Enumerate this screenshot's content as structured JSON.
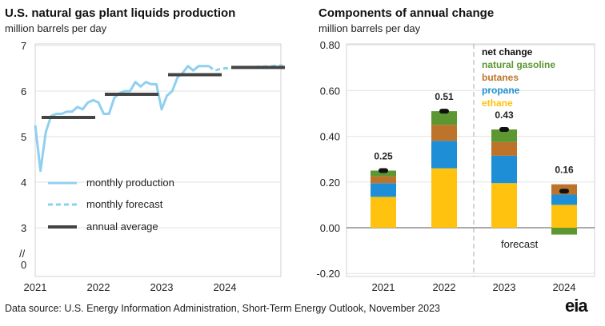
{
  "left_chart": {
    "title": "U.S. natural gas plant liquids production",
    "subtitle": "million barrels per day",
    "y_ticks": [
      "7",
      "6",
      "5",
      "4",
      "3",
      "0"
    ],
    "axis_break": "//",
    "x_ticks": [
      "2021",
      "2022",
      "2023",
      "2024"
    ],
    "legend": [
      "monthly production",
      "monthly forecast",
      "annual average"
    ]
  },
  "right_chart": {
    "title": "Components of annual change",
    "subtitle": "million barrels per day",
    "y_ticks": [
      "0.80",
      "0.60",
      "0.40",
      "0.20",
      "0.00",
      "-0.20"
    ],
    "x_ticks": [
      "2021",
      "2022",
      "2023",
      "2024"
    ],
    "legend": [
      "net change",
      "natural gasoline",
      "butanes",
      "propane",
      "ethane"
    ],
    "forecast_label": "forecast",
    "data_labels": [
      "0.25",
      "0.51",
      "0.43",
      "0.16"
    ]
  },
  "source": "Data source: U.S. Energy Information Administration, Short-Term Energy Outlook, November 2023",
  "logo": "eia",
  "colors": {
    "monthly": "#8fd0ef",
    "annual": "#444444",
    "ethane": "#ffc20e",
    "propane": "#1e8fd6",
    "butanes": "#bd732a",
    "natural_gasoline": "#5d9732",
    "net_change": "#111111"
  },
  "chart_data": [
    {
      "type": "line",
      "title": "U.S. natural gas plant liquids production",
      "ylabel": "million barrels per day",
      "ylim": [
        3,
        7
      ],
      "y_axis_break": true,
      "xlim": [
        "2021-01",
        "2024-12"
      ],
      "series": [
        {
          "name": "monthly production",
          "style": "solid",
          "x": [
            "2021-01",
            "2021-02",
            "2021-03",
            "2021-04",
            "2021-05",
            "2021-06",
            "2021-07",
            "2021-08",
            "2021-09",
            "2021-10",
            "2021-11",
            "2021-12",
            "2022-01",
            "2022-02",
            "2022-03",
            "2022-04",
            "2022-05",
            "2022-06",
            "2022-07",
            "2022-08",
            "2022-09",
            "2022-10",
            "2022-11",
            "2022-12",
            "2023-01",
            "2023-02",
            "2023-03",
            "2023-04",
            "2023-05",
            "2023-06",
            "2023-07",
            "2023-08",
            "2023-09",
            "2023-10"
          ],
          "y": [
            5.25,
            4.25,
            5.1,
            5.45,
            5.5,
            5.5,
            5.55,
            5.55,
            5.65,
            5.6,
            5.75,
            5.8,
            5.75,
            5.5,
            5.5,
            5.85,
            5.95,
            6.0,
            6.0,
            6.2,
            6.1,
            6.2,
            6.15,
            6.15,
            5.6,
            5.9,
            6.0,
            6.3,
            6.4,
            6.55,
            6.45,
            6.55,
            6.55,
            6.55
          ]
        },
        {
          "name": "monthly forecast",
          "style": "dashed",
          "x": [
            "2023-10",
            "2023-11",
            "2023-12",
            "2024-01",
            "2024-02",
            "2024-03",
            "2024-04",
            "2024-05",
            "2024-06",
            "2024-07",
            "2024-08",
            "2024-09",
            "2024-10",
            "2024-11",
            "2024-12"
          ],
          "y": [
            6.55,
            6.45,
            6.48,
            6.5,
            6.5,
            6.52,
            6.52,
            6.52,
            6.53,
            6.53,
            6.54,
            6.54,
            6.55,
            6.56,
            6.56
          ]
        },
        {
          "name": "annual average",
          "style": "step",
          "periods": [
            {
              "year": 2021,
              "value": 5.42
            },
            {
              "year": 2022,
              "value": 5.93
            },
            {
              "year": 2023,
              "value": 6.36
            },
            {
              "year": 2024,
              "value": 6.52
            }
          ]
        }
      ]
    },
    {
      "type": "bar",
      "stacked": true,
      "title": "Components of annual change",
      "ylabel": "million barrels per day",
      "ylim": [
        -0.2,
        0.8
      ],
      "categories": [
        "2021",
        "2022",
        "2023",
        "2024"
      ],
      "forecast_from": "2023",
      "series": [
        {
          "name": "ethane",
          "values": [
            0.135,
            0.26,
            0.195,
            0.1
          ]
        },
        {
          "name": "propane",
          "values": [
            0.06,
            0.12,
            0.12,
            0.045
          ]
        },
        {
          "name": "butanes",
          "values": [
            0.03,
            0.07,
            0.06,
            0.045
          ]
        },
        {
          "name": "natural gasoline",
          "values": [
            0.025,
            0.06,
            0.055,
            -0.03
          ]
        }
      ],
      "net_change": [
        0.25,
        0.51,
        0.43,
        0.16
      ]
    }
  ]
}
